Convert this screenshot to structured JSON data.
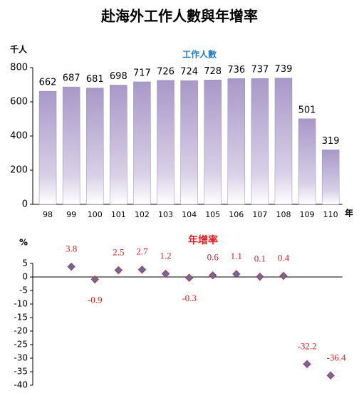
{
  "title": "赴海外工作人數與年增率",
  "chart_data": [
    {
      "type": "bar",
      "ylabel": "千人",
      "xlabel": "年",
      "categories": [
        "98",
        "99",
        "100",
        "101",
        "102",
        "103",
        "104",
        "105",
        "106",
        "107",
        "108",
        "109",
        "110"
      ],
      "series": [
        {
          "name": "工作人數",
          "color": "#b7a9d0",
          "values": [
            662,
            687,
            681,
            698,
            717,
            726,
            724,
            728,
            736,
            737,
            739,
            501,
            319
          ]
        }
      ],
      "ylim": [
        0,
        800
      ],
      "yticks": [
        0,
        200,
        400,
        600,
        800
      ],
      "grid": false
    },
    {
      "type": "scatter",
      "ylabel": "%",
      "categories": [
        "98",
        "99",
        "100",
        "101",
        "102",
        "103",
        "104",
        "105",
        "106",
        "107",
        "108",
        "109",
        "110"
      ],
      "series": [
        {
          "name": "年增率",
          "color": "#5b6fa8",
          "values": [
            null,
            3.8,
            -0.9,
            2.5,
            2.7,
            1.2,
            -0.3,
            0.6,
            1.1,
            0.1,
            0.4,
            -32.2,
            -36.4
          ]
        }
      ],
      "ylim": [
        -40,
        5
      ],
      "yticks": [
        5,
        0,
        -5,
        -10,
        -15,
        -20,
        -25,
        -30,
        -35,
        -40
      ],
      "grid": false
    }
  ]
}
